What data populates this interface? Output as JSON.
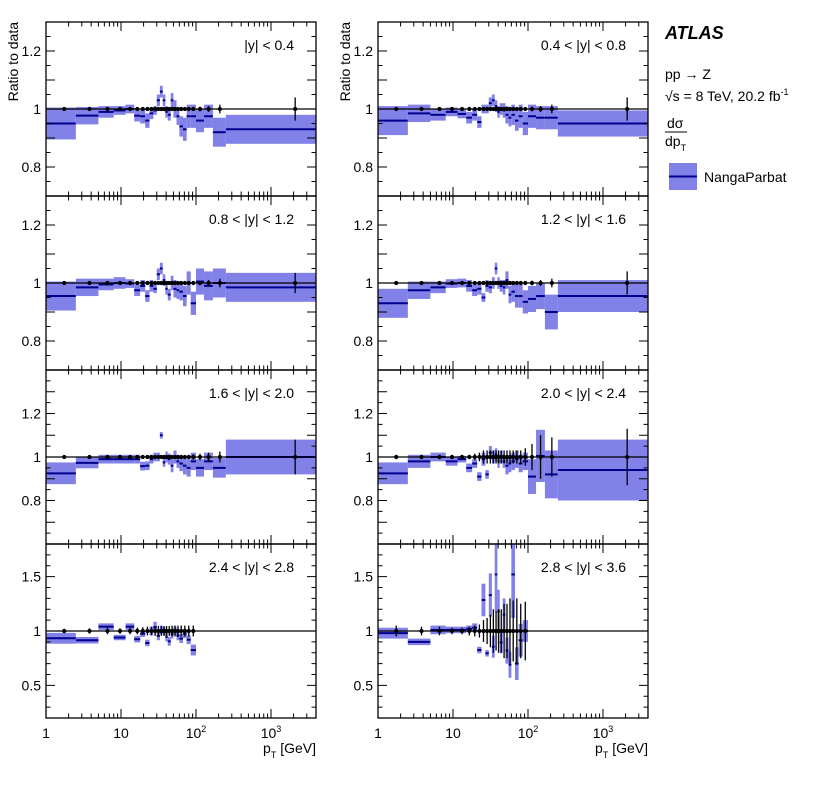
{
  "legend": {
    "experiment": "ATLAS",
    "process": "pp → Z",
    "energy": "√s = 8 TeV, 20.2 fb",
    "energy_sup": "-1",
    "observable_num": "dσ",
    "observable_den": "dp",
    "observable_den_sub": "T",
    "model": "NangaParbat"
  },
  "colors": {
    "band": "#8181e8",
    "central_line": "#00008c",
    "data": "#000000",
    "reference_line": "#000000"
  },
  "chart_data": {
    "type": "ratio-band",
    "xscale": "log",
    "xlim": [
      1,
      4000
    ],
    "xlabel": "p",
    "xlabel_sub": "T",
    "xlabel_unit": " [GeV]",
    "ylabel": "Ratio to data",
    "x_tick_labels": [
      {
        "base": "1",
        "exp": ""
      },
      {
        "base": "10",
        "exp": ""
      },
      {
        "base": "10",
        "exp": "2"
      },
      {
        "base": "10",
        "exp": "3"
      }
    ],
    "bin_edges": [
      1,
      2.5,
      5,
      8,
      11.5,
      15,
      18,
      21,
      24,
      27,
      30,
      33,
      36,
      39,
      42,
      46,
      50,
      55,
      60,
      67,
      75,
      85,
      100,
      128,
      168,
      250,
      4000
    ],
    "data_x": [
      1.75,
      3.8,
      6.6,
      9.7,
      13.2,
      16.5,
      19.5,
      22.5,
      25.5,
      28.5,
      31.5,
      34.5,
      37.5,
      40.5,
      44,
      48,
      52.5,
      57.5,
      63.5,
      71,
      80,
      92,
      113,
      147,
      208,
      2100
    ],
    "panels": [
      {
        "label": "|y| < 0.4",
        "ylim": [
          0.7,
          1.3
        ],
        "y_ticks": [
          {
            "v": 1.2,
            "t": "1.2"
          },
          {
            "v": 1,
            "t": "1"
          },
          {
            "v": 0.8,
            "t": "0.8"
          }
        ],
        "y_minor": 0.05,
        "ratio": [
          0.95,
          0.977,
          0.99,
          0.995,
          1.0,
          0.977,
          0.975,
          0.96,
          0.985,
          0.995,
          1.03,
          1.06,
          1.03,
          0.99,
          0.98,
          1.03,
          1.0,
          0.975,
          0.94,
          0.93,
          0.975,
          0.975,
          0.96,
          0.975,
          0.92,
          0.93
        ],
        "ratio_err": [
          0.055,
          0.03,
          0.02,
          0.015,
          0.015,
          0.02,
          0.025,
          0.025,
          0.02,
          0.015,
          0.02,
          0.02,
          0.02,
          0.02,
          0.02,
          0.025,
          0.03,
          0.03,
          0.035,
          0.04,
          0.04,
          0.04,
          0.04,
          0.04,
          0.05,
          0.05
        ],
        "data_err": [
          0.004,
          0.004,
          0.004,
          0.004,
          0.004,
          0.004,
          0.004,
          0.004,
          0.004,
          0.004,
          0.004,
          0.004,
          0.004,
          0.004,
          0.004,
          0.004,
          0.005,
          0.005,
          0.005,
          0.006,
          0.006,
          0.007,
          0.008,
          0.01,
          0.015,
          0.04
        ]
      },
      {
        "label": "0.4 < |y| < 0.8",
        "ylim": [
          0.7,
          1.3
        ],
        "y_ticks": [
          {
            "v": 1.2,
            "t": "1.2"
          },
          {
            "v": 1,
            "t": "1"
          },
          {
            "v": 0.8,
            "t": "0.8"
          }
        ],
        "y_minor": 0.05,
        "ratio": [
          0.96,
          0.985,
          0.98,
          0.99,
          0.983,
          0.97,
          0.98,
          0.955,
          1.0,
          1.0,
          1.02,
          1.03,
          1.01,
          0.99,
          1.0,
          0.995,
          0.98,
          0.97,
          0.98,
          0.96,
          0.975,
          0.95,
          0.975,
          0.97,
          0.97,
          0.95
        ],
        "ratio_err": [
          0.05,
          0.03,
          0.02,
          0.015,
          0.015,
          0.02,
          0.02,
          0.02,
          0.015,
          0.015,
          0.02,
          0.02,
          0.02,
          0.02,
          0.02,
          0.025,
          0.03,
          0.03,
          0.035,
          0.035,
          0.04,
          0.04,
          0.04,
          0.04,
          0.04,
          0.045
        ],
        "data_err": [
          0.004,
          0.004,
          0.004,
          0.004,
          0.004,
          0.004,
          0.004,
          0.004,
          0.004,
          0.004,
          0.004,
          0.004,
          0.004,
          0.004,
          0.004,
          0.004,
          0.005,
          0.005,
          0.005,
          0.006,
          0.006,
          0.007,
          0.008,
          0.01,
          0.015,
          0.04
        ]
      },
      {
        "label": "0.8 < |y| < 1.2",
        "ylim": [
          0.7,
          1.3
        ],
        "y_ticks": [
          {
            "v": 1.2,
            "t": "1.2"
          },
          {
            "v": 1,
            "t": "1"
          },
          {
            "v": 0.8,
            "t": "0.8"
          }
        ],
        "y_minor": 0.05,
        "ratio": [
          0.955,
          0.985,
          0.995,
          1.0,
          0.998,
          0.975,
          0.99,
          0.955,
          0.99,
          0.98,
          1.03,
          1.05,
          1.01,
          0.98,
          0.96,
          1.0,
          0.98,
          0.975,
          0.97,
          0.955,
          1.0,
          0.93,
          1.005,
          0.99,
          1.0,
          0.985
        ],
        "ratio_err": [
          0.05,
          0.03,
          0.02,
          0.02,
          0.015,
          0.02,
          0.02,
          0.02,
          0.02,
          0.015,
          0.02,
          0.02,
          0.02,
          0.02,
          0.02,
          0.025,
          0.03,
          0.03,
          0.03,
          0.035,
          0.04,
          0.04,
          0.045,
          0.05,
          0.05,
          0.05
        ],
        "data_err": [
          0.004,
          0.004,
          0.004,
          0.004,
          0.004,
          0.004,
          0.004,
          0.004,
          0.004,
          0.004,
          0.004,
          0.004,
          0.004,
          0.004,
          0.004,
          0.004,
          0.005,
          0.005,
          0.005,
          0.006,
          0.006,
          0.007,
          0.008,
          0.01,
          0.015,
          0.035
        ]
      },
      {
        "label": "1.2 < |y| < 1.6",
        "ylim": [
          0.7,
          1.3
        ],
        "y_ticks": [
          {
            "v": 1.2,
            "t": "1.2"
          },
          {
            "v": 1,
            "t": "1"
          },
          {
            "v": 0.8,
            "t": "0.8"
          }
        ],
        "y_minor": 0.05,
        "ratio": [
          0.93,
          0.975,
          0.985,
          0.998,
          1.0,
          0.99,
          0.975,
          0.98,
          0.95,
          0.99,
          0.985,
          1.0,
          1.05,
          1.0,
          0.99,
          0.985,
          1.01,
          0.96,
          0.97,
          0.955,
          0.955,
          0.935,
          0.945,
          0.955,
          0.9,
          0.955
        ],
        "ratio_err": [
          0.05,
          0.03,
          0.02,
          0.015,
          0.015,
          0.02,
          0.02,
          0.02,
          0.015,
          0.02,
          0.02,
          0.02,
          0.02,
          0.02,
          0.02,
          0.025,
          0.03,
          0.03,
          0.035,
          0.04,
          0.04,
          0.04,
          0.045,
          0.045,
          0.06,
          0.055
        ],
        "data_err": [
          0.004,
          0.004,
          0.004,
          0.004,
          0.004,
          0.004,
          0.004,
          0.004,
          0.004,
          0.004,
          0.004,
          0.004,
          0.004,
          0.004,
          0.004,
          0.004,
          0.005,
          0.005,
          0.005,
          0.006,
          0.006,
          0.007,
          0.008,
          0.01,
          0.015,
          0.04
        ]
      },
      {
        "label": "1.6 < |y| < 2.0",
        "ylim": [
          0.6,
          1.4
        ],
        "y_ticks": [
          {
            "v": 1.2,
            "t": "1.2"
          },
          {
            "v": 1,
            "t": "1"
          },
          {
            "v": 0.8,
            "t": "0.8"
          }
        ],
        "y_minor": 0.05,
        "ratio": [
          0.925,
          0.973,
          0.99,
          0.99,
          0.99,
          0.99,
          0.958,
          0.96,
          0.99,
          1.0,
          1.0,
          1.1,
          0.975,
          1.0,
          0.99,
          0.96,
          1.0,
          0.98,
          0.97,
          0.96,
          0.95,
          0.98,
          0.95,
          0.98,
          0.95,
          1.0
        ],
        "ratio_err": [
          0.05,
          0.025,
          0.02,
          0.02,
          0.02,
          0.02,
          0.02,
          0.02,
          0.02,
          0.02,
          0.02,
          0.015,
          0.02,
          0.025,
          0.025,
          0.03,
          0.03,
          0.03,
          0.035,
          0.04,
          0.04,
          0.04,
          0.04,
          0.04,
          0.045,
          0.08
        ],
        "data_err": [
          0.004,
          0.004,
          0.004,
          0.004,
          0.004,
          0.004,
          0.005,
          0.005,
          0.005,
          0.005,
          0.005,
          0.005,
          0.005,
          0.005,
          0.005,
          0.006,
          0.006,
          0.007,
          0.008,
          0.008,
          0.01,
          0.012,
          0.015,
          0.02,
          0.025,
          0.08
        ]
      },
      {
        "label": "2.0 < |y| < 2.4",
        "ylim": [
          0.6,
          1.4
        ],
        "y_ticks": [
          {
            "v": 1.2,
            "t": "1.2"
          },
          {
            "v": 1,
            "t": "1"
          },
          {
            "v": 0.8,
            "t": "0.8"
          }
        ],
        "y_minor": 0.05,
        "ratio": [
          0.925,
          0.98,
          1.0,
          0.98,
          0.99,
          0.95,
          0.97,
          0.91,
          0.99,
          0.92,
          1.02,
          1.0,
          1.01,
          0.98,
          1.0,
          0.98,
          0.96,
          0.97,
          0.98,
          0.99,
          0.97,
          0.98,
          0.91,
          1.005,
          0.92,
          0.94
        ],
        "ratio_err": [
          0.05,
          0.03,
          0.02,
          0.02,
          0.015,
          0.02,
          0.02,
          0.02,
          0.03,
          0.02,
          0.03,
          0.03,
          0.03,
          0.03,
          0.03,
          0.03,
          0.04,
          0.04,
          0.04,
          0.04,
          0.04,
          0.04,
          0.08,
          0.12,
          0.11,
          0.14
        ],
        "data_err": [
          0.01,
          0.01,
          0.01,
          0.01,
          0.01,
          0.01,
          0.015,
          0.02,
          0.03,
          0.03,
          0.03,
          0.03,
          0.03,
          0.03,
          0.03,
          0.03,
          0.03,
          0.03,
          0.03,
          0.03,
          0.03,
          0.04,
          0.06,
          0.1,
          0.09,
          0.13
        ]
      },
      {
        "label": "2.4 < |y| < 2.8",
        "ylim": [
          0.2,
          1.8
        ],
        "y_ticks": [
          {
            "v": 1.5,
            "t": "1.5"
          },
          {
            "v": 1,
            "t": "1"
          },
          {
            "v": 0.5,
            "t": "0.5"
          }
        ],
        "y_minor": 0.1,
        "ratio": [
          0.933,
          0.915,
          1.04,
          0.94,
          1.04,
          0.925,
          0.975,
          0.89,
          1.0,
          1.035,
          0.955,
          1.01,
          1.0,
          0.945,
          0.905,
          0.97,
          1.0,
          0.955,
          0.93,
          0.975,
          0.92,
          0.825
        ],
        "ratio_err": [
          0.05,
          0.03,
          0.03,
          0.025,
          0.03,
          0.03,
          0.03,
          0.03,
          0.04,
          0.05,
          0.04,
          0.04,
          0.04,
          0.04,
          0.04,
          0.04,
          0.04,
          0.04,
          0.04,
          0.04,
          0.04,
          0.05
        ],
        "data_err": [
          0.02,
          0.025,
          0.03,
          0.025,
          0.03,
          0.03,
          0.035,
          0.04,
          0.04,
          0.045,
          0.045,
          0.045,
          0.045,
          0.045,
          0.045,
          0.05,
          0.05,
          0.05,
          0.05,
          0.05,
          0.05,
          0.05
        ]
      },
      {
        "label": "2.8 < |y| < 3.6",
        "ylim": [
          0.2,
          1.8
        ],
        "y_ticks": [
          {
            "v": 1.5,
            "t": "1.5"
          },
          {
            "v": 1,
            "t": "1"
          },
          {
            "v": 0.5,
            "t": "0.5"
          }
        ],
        "y_minor": 0.1,
        "ratio": [
          0.98,
          0.9,
          1.01,
          1.01,
          1.01,
          1.02,
          1.03,
          0.825,
          1.285,
          0.795,
          1.33,
          0.855,
          1.52,
          1.18,
          0.895,
          1.15,
          0.82,
          0.69,
          1.52,
          0.7,
          0.915,
          1.0
        ],
        "ratio_err": [
          0.05,
          0.03,
          0.04,
          0.03,
          0.03,
          0.03,
          0.04,
          0.03,
          0.15,
          0.03,
          0.2,
          0.1,
          0.35,
          0.2,
          0.1,
          0.15,
          0.12,
          0.12,
          0.4,
          0.15,
          0.15,
          0.1
        ],
        "data_err": [
          0.05,
          0.04,
          0.04,
          0.03,
          0.03,
          0.04,
          0.05,
          0.06,
          0.1,
          0.12,
          0.15,
          0.2,
          0.18,
          0.2,
          0.2,
          0.25,
          0.25,
          0.3,
          0.28,
          0.3,
          0.25,
          0.27
        ]
      }
    ]
  }
}
